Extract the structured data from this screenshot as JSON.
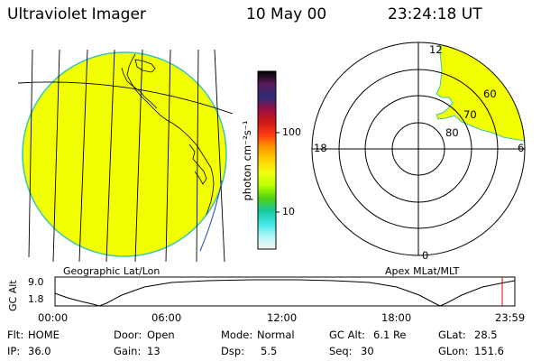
{
  "header": {
    "instrument": "Ultraviolet Imager",
    "date": "10 May 00",
    "time": "23:24:18 UT"
  },
  "colorbar": {
    "unit_label": "photon cm⁻²s⁻¹",
    "ticks": [
      "100",
      "10"
    ],
    "colors": [
      "#000000",
      "#5a1a5a",
      "#2b2b7a",
      "#9a1040",
      "#d01818",
      "#ff3a10",
      "#ff9a00",
      "#ffd200",
      "#f2ff10",
      "#b8ff00",
      "#4ed010",
      "#18c8a0",
      "#40e8e8",
      "#b0f8f8",
      "#f4f4f4"
    ]
  },
  "geo_panel": {
    "caption": "Geographic Lat/Lon",
    "disk_color": "#f2ff00",
    "limb_color": "#39c6b8"
  },
  "polar_plot": {
    "caption": "Apex MLat/MLT",
    "mlt_labels": {
      "top": "12",
      "left": "18",
      "right": "6",
      "bottom": "0"
    },
    "lat_labels": [
      "80",
      "70",
      "60"
    ],
    "coverage_color": "#f2ff00"
  },
  "altitude_plot": {
    "ylabel": "GC Alt",
    "yticks": [
      "9.0",
      "1.8"
    ],
    "xticks": [
      "00:00",
      "06:00",
      "12:00",
      "18:00",
      "23:59"
    ],
    "marker_color": "#e00000"
  },
  "status": {
    "row1": [
      {
        "key": "Flt:",
        "val": "HOME"
      },
      {
        "key": "Door:",
        "val": "Open"
      },
      {
        "key": "Mode:",
        "val": "Normal"
      },
      {
        "key": "GC Alt:",
        "val": "6.1 Re"
      },
      {
        "key": "GLat:",
        "val": "28.5"
      }
    ],
    "row2": [
      {
        "key": "IP:",
        "val": "36.0"
      },
      {
        "key": "Gain:",
        "val": "13"
      },
      {
        "key": "Dsp:",
        "val": "5.5"
      },
      {
        "key": "Seq:",
        "val": "30"
      },
      {
        "key": "GLon:",
        "val": "151.6"
      }
    ]
  }
}
